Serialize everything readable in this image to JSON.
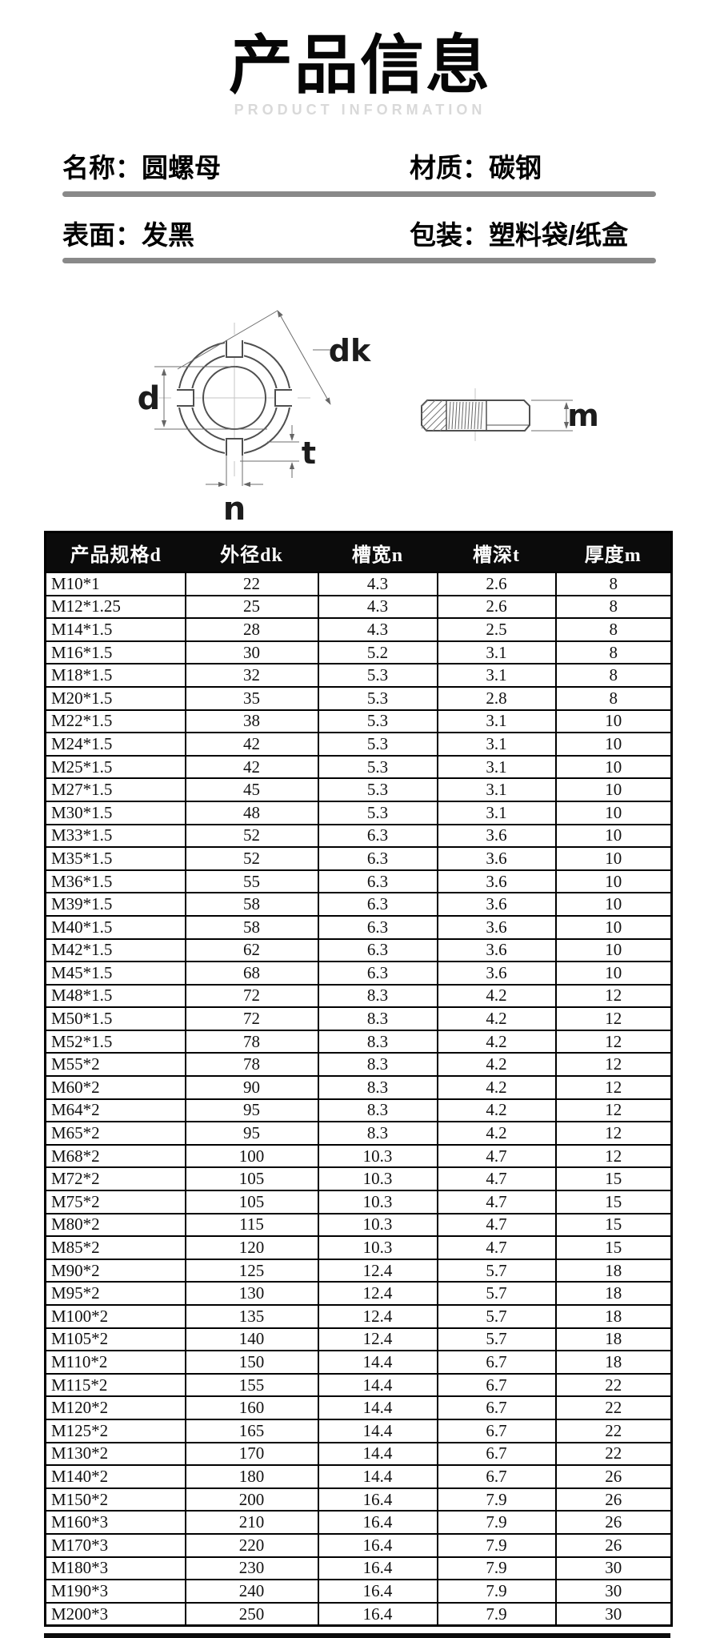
{
  "page": {
    "title": "产品信息",
    "subtitle": "PRODUCT INFORMATION"
  },
  "info": {
    "name_label": "名称：",
    "name_value": "圆螺母",
    "material_label": "材质：",
    "material_value": "碳钢",
    "surface_label": "表面：",
    "surface_value": "发黑",
    "package_label": "包装：",
    "package_value": "塑料袋/纸盒"
  },
  "diagram": {
    "labels": {
      "d": "d",
      "dk": "dk",
      "t": "t",
      "n": "n",
      "m": "m"
    }
  },
  "table": {
    "headers": [
      "产品规格d",
      "外径dk",
      "槽宽n",
      "槽深t",
      "厚度m"
    ],
    "rows": [
      [
        "M10*1",
        "22",
        "4.3",
        "2.6",
        "8"
      ],
      [
        "M12*1.25",
        "25",
        "4.3",
        "2.6",
        "8"
      ],
      [
        "M14*1.5",
        "28",
        "4.3",
        "2.5",
        "8"
      ],
      [
        "M16*1.5",
        "30",
        "5.2",
        "3.1",
        "8"
      ],
      [
        "M18*1.5",
        "32",
        "5.3",
        "3.1",
        "8"
      ],
      [
        "M20*1.5",
        "35",
        "5.3",
        "2.8",
        "8"
      ],
      [
        "M22*1.5",
        "38",
        "5.3",
        "3.1",
        "10"
      ],
      [
        "M24*1.5",
        "42",
        "5.3",
        "3.1",
        "10"
      ],
      [
        "M25*1.5",
        "42",
        "5.3",
        "3.1",
        "10"
      ],
      [
        "M27*1.5",
        "45",
        "5.3",
        "3.1",
        "10"
      ],
      [
        "M30*1.5",
        "48",
        "5.3",
        "3.1",
        "10"
      ],
      [
        "M33*1.5",
        "52",
        "6.3",
        "3.6",
        "10"
      ],
      [
        "M35*1.5",
        "52",
        "6.3",
        "3.6",
        "10"
      ],
      [
        "M36*1.5",
        "55",
        "6.3",
        "3.6",
        "10"
      ],
      [
        "M39*1.5",
        "58",
        "6.3",
        "3.6",
        "10"
      ],
      [
        "M40*1.5",
        "58",
        "6.3",
        "3.6",
        "10"
      ],
      [
        "M42*1.5",
        "62",
        "6.3",
        "3.6",
        "10"
      ],
      [
        "M45*1.5",
        "68",
        "6.3",
        "3.6",
        "10"
      ],
      [
        "M48*1.5",
        "72",
        "8.3",
        "4.2",
        "12"
      ],
      [
        "M50*1.5",
        "72",
        "8.3",
        "4.2",
        "12"
      ],
      [
        "M52*1.5",
        "78",
        "8.3",
        "4.2",
        "12"
      ],
      [
        "M55*2",
        "78",
        "8.3",
        "4.2",
        "12"
      ],
      [
        "M60*2",
        "90",
        "8.3",
        "4.2",
        "12"
      ],
      [
        "M64*2",
        "95",
        "8.3",
        "4.2",
        "12"
      ],
      [
        "M65*2",
        "95",
        "8.3",
        "4.2",
        "12"
      ],
      [
        "M68*2",
        "100",
        "10.3",
        "4.7",
        "12"
      ],
      [
        "M72*2",
        "105",
        "10.3",
        "4.7",
        "15"
      ],
      [
        "M75*2",
        "105",
        "10.3",
        "4.7",
        "15"
      ],
      [
        "M80*2",
        "115",
        "10.3",
        "4.7",
        "15"
      ],
      [
        "M85*2",
        "120",
        "10.3",
        "4.7",
        "15"
      ],
      [
        "M90*2",
        "125",
        "12.4",
        "5.7",
        "18"
      ],
      [
        "M95*2",
        "130",
        "12.4",
        "5.7",
        "18"
      ],
      [
        "M100*2",
        "135",
        "12.4",
        "5.7",
        "18"
      ],
      [
        "M105*2",
        "140",
        "12.4",
        "5.7",
        "18"
      ],
      [
        "M110*2",
        "150",
        "14.4",
        "6.7",
        "18"
      ],
      [
        "M115*2",
        "155",
        "14.4",
        "6.7",
        "22"
      ],
      [
        "M120*2",
        "160",
        "14.4",
        "6.7",
        "22"
      ],
      [
        "M125*2",
        "165",
        "14.4",
        "6.7",
        "22"
      ],
      [
        "M130*2",
        "170",
        "14.4",
        "6.7",
        "22"
      ],
      [
        "M140*2",
        "180",
        "14.4",
        "6.7",
        "26"
      ],
      [
        "M150*2",
        "200",
        "16.4",
        "7.9",
        "26"
      ],
      [
        "M160*3",
        "210",
        "16.4",
        "7.9",
        "26"
      ],
      [
        "M170*3",
        "220",
        "16.4",
        "7.9",
        "26"
      ],
      [
        "M180*3",
        "230",
        "16.4",
        "7.9",
        "30"
      ],
      [
        "M190*3",
        "240",
        "16.4",
        "7.9",
        "30"
      ],
      [
        "M200*3",
        "250",
        "16.4",
        "7.9",
        "30"
      ]
    ]
  },
  "colors": {
    "header_bg": "#0b0b0b",
    "divider": "#898989",
    "subtitle": "#d9d9d9",
    "table_border": "#000000"
  }
}
